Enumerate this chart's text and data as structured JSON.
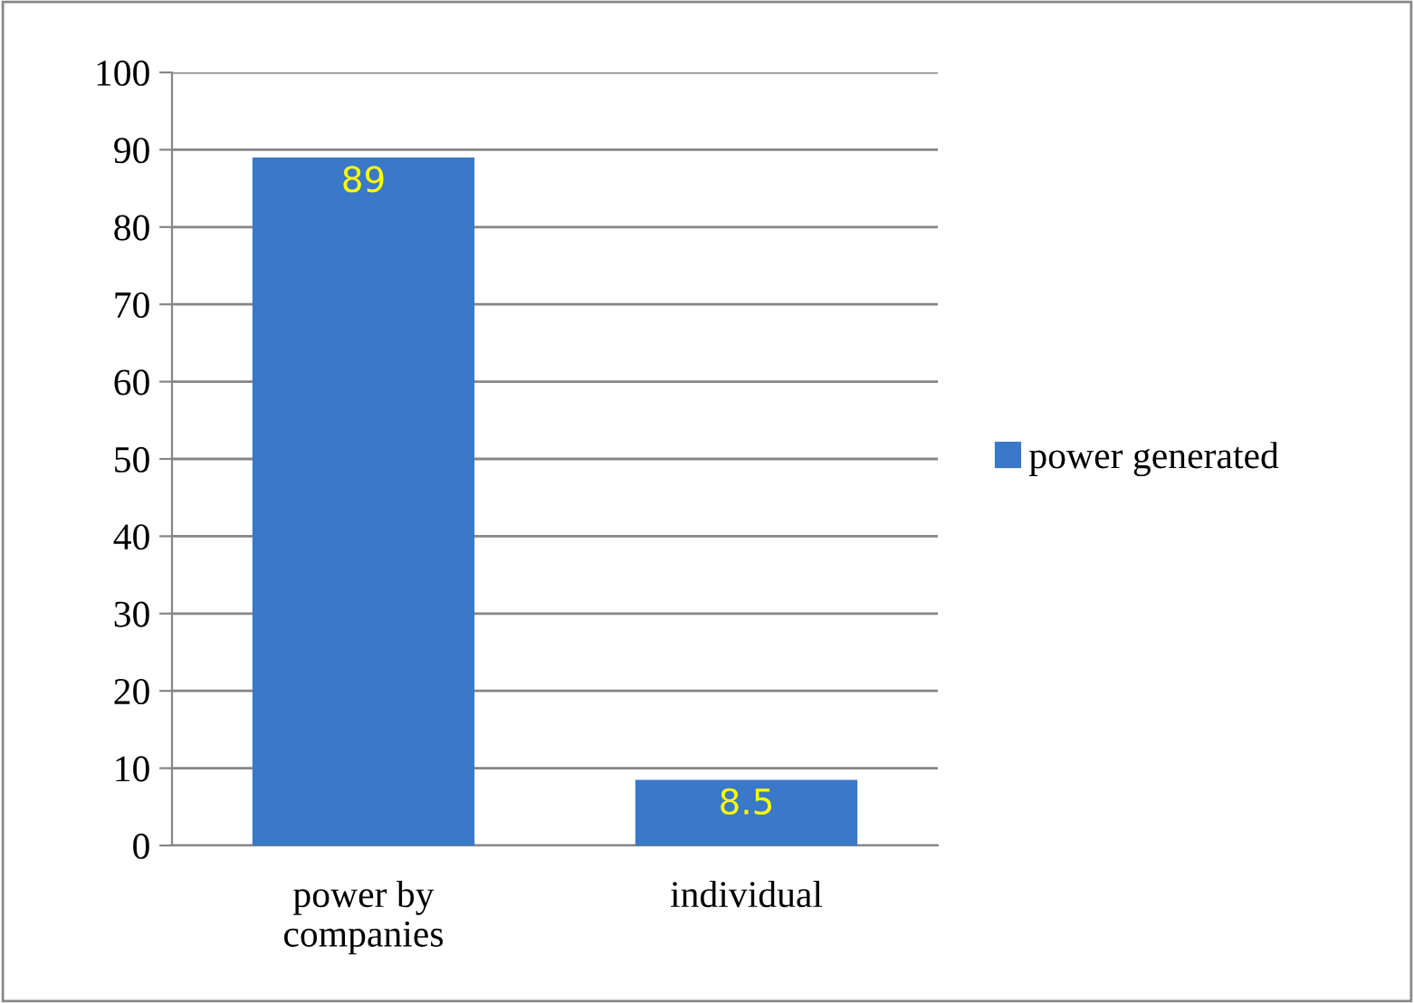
{
  "chart_data": {
    "type": "bar",
    "categories": [
      "power by\ncompanies",
      "individual"
    ],
    "series": [
      {
        "name": "power generated",
        "color": "#3a78c8",
        "values": [
          89,
          8.5
        ]
      }
    ],
    "ylim": [
      0,
      100
    ],
    "yticks": [
      0,
      10,
      20,
      30,
      40,
      50,
      60,
      70,
      80,
      90,
      100
    ],
    "grid": "y",
    "legend": "right",
    "data_labels": true
  }
}
